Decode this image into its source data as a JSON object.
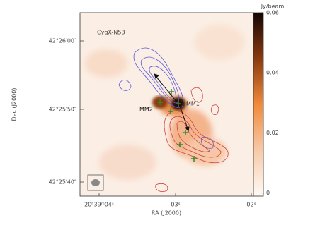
{
  "chart_data": {
    "type": "image",
    "title": "CygX-N53",
    "annotations": [
      "MM1",
      "MM2"
    ],
    "xlabel": "RA (J2000)",
    "ylabel": "Dec (J2000)",
    "xtick_labels": [
      "20ʰ39ᵐ04ˢ",
      "03ˢ",
      "02ˢ"
    ],
    "ytick_labels": [
      "42°26′00″",
      "42°25′50″",
      "42°25′40″"
    ],
    "colorbar": {
      "label": "Jy/beam",
      "lim": [
        -0.001,
        0.06
      ],
      "ticks": [
        0,
        0.02,
        0.04,
        0.06
      ]
    }
  }
}
